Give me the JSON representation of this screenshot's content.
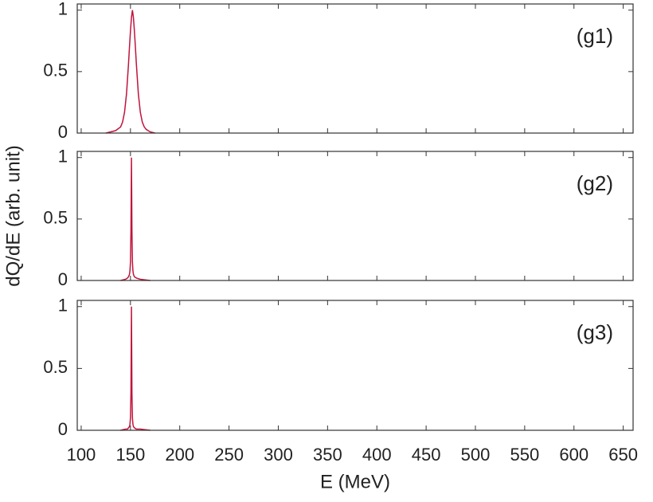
{
  "chart_data": [
    {
      "type": "line",
      "annotation": "(g1)",
      "x": [
        125,
        130,
        135,
        140,
        142,
        144,
        146,
        148,
        149,
        150,
        151,
        152,
        153,
        154,
        155,
        156,
        158,
        160,
        162,
        164,
        166,
        170,
        175
      ],
      "series": [
        {
          "color": "#c0143c",
          "values": [
            0,
            0.01,
            0.02,
            0.05,
            0.09,
            0.17,
            0.32,
            0.56,
            0.7,
            0.83,
            0.94,
            1,
            0.94,
            0.83,
            0.7,
            0.56,
            0.32,
            0.17,
            0.09,
            0.05,
            0.03,
            0.01,
            0
          ]
        }
      ],
      "xlim": [
        96,
        660
      ],
      "ylim": [
        0,
        1.05
      ],
      "yticks": [
        0,
        0.5,
        1
      ]
    },
    {
      "type": "line",
      "annotation": "(g2)",
      "ylabel": "dQ/dE (arb. unit)",
      "x": [
        140,
        145,
        147,
        148,
        149,
        149.5,
        150,
        150.5,
        151,
        151.5,
        152,
        152.5,
        153,
        154,
        156,
        160,
        170
      ],
      "series": [
        {
          "color": "#c0143c",
          "values": [
            0,
            0.01,
            0.02,
            0.03,
            0.05,
            0.08,
            0.15,
            0.4,
            1,
            0.4,
            0.15,
            0.08,
            0.05,
            0.03,
            0.02,
            0.01,
            0
          ]
        }
      ],
      "xlim": [
        96,
        660
      ],
      "ylim": [
        0,
        1.05
      ],
      "yticks": [
        0,
        0.5,
        1
      ]
    },
    {
      "type": "line",
      "annotation": "(g3)",
      "xlabel": "E (MeV)",
      "x": [
        140,
        145,
        147,
        148,
        149,
        149.5,
        150,
        150.5,
        151,
        151.5,
        152,
        152.5,
        153,
        154,
        156,
        160,
        170
      ],
      "series": [
        {
          "color": "#c0143c",
          "values": [
            0,
            0.01,
            0.01,
            0.02,
            0.03,
            0.05,
            0.1,
            0.3,
            1,
            0.3,
            0.1,
            0.05,
            0.03,
            0.02,
            0.01,
            0.01,
            0
          ]
        }
      ],
      "xlim": [
        96,
        660
      ],
      "ylim": [
        0,
        1.05
      ],
      "yticks": [
        0,
        0.5,
        1
      ],
      "xticks": [
        100,
        150,
        200,
        250,
        300,
        350,
        400,
        450,
        500,
        550,
        600,
        650
      ]
    }
  ]
}
